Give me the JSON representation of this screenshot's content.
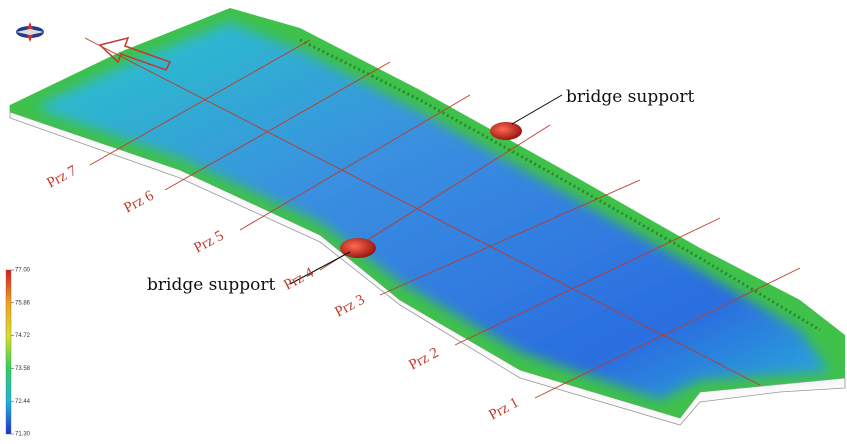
{
  "sections": [
    "Prz 1",
    "Prz 2",
    "Prz 3",
    "Prz 4",
    "Prz 5",
    "Prz 6",
    "Prz 7"
  ],
  "annotations": [
    "bridge support",
    "bridge support"
  ],
  "colorbar": {
    "range": [
      71.3,
      77
    ],
    "ticks": [
      {
        "value": 77,
        "label": "77.00"
      },
      {
        "value": 75.86,
        "label": "75.86"
      },
      {
        "value": 74.72,
        "label": "74.72"
      },
      {
        "value": 73.58,
        "label": "73.58"
      },
      {
        "value": 72.44,
        "label": "72.44"
      },
      {
        "value": 71.3,
        "label": "71.30"
      }
    ]
  }
}
